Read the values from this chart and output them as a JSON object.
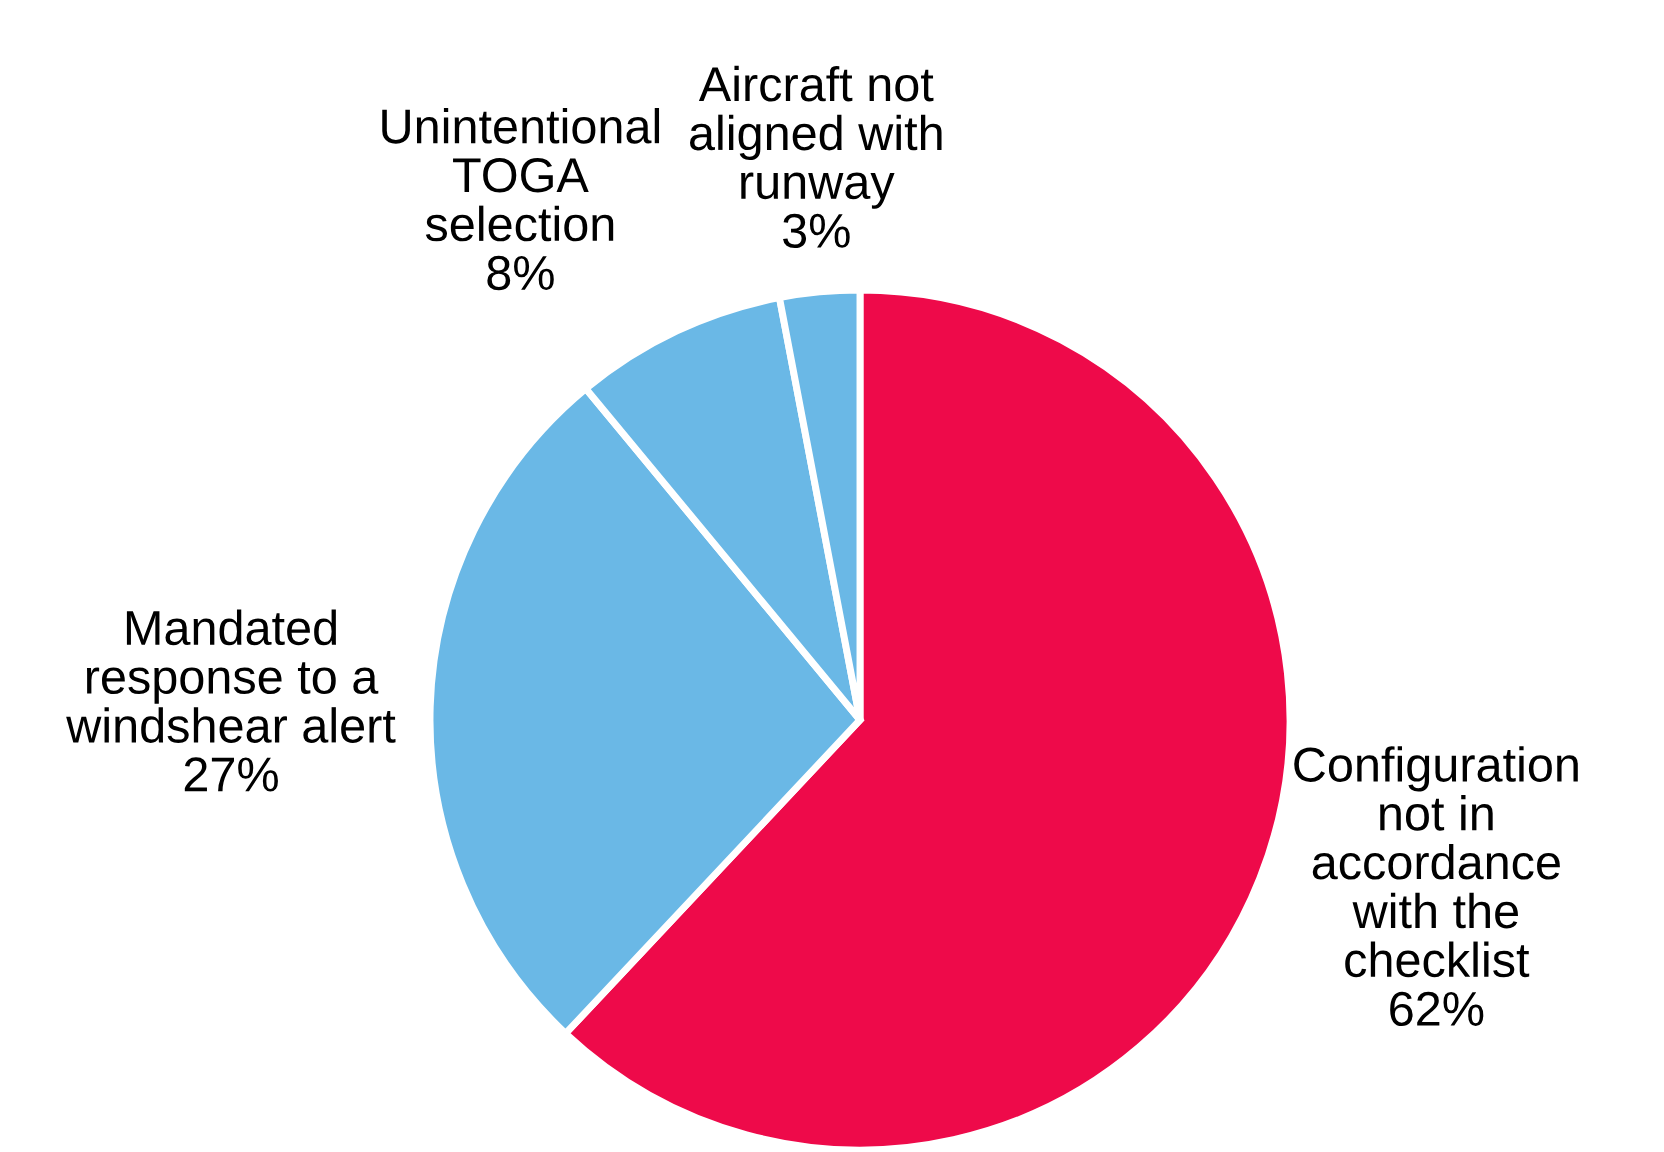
{
  "chart_data": {
    "type": "pie",
    "categories": [
      "Configuration\nnot in\naccordance\nwith the\nchecklist",
      "Mandated\nresponse to a\nwindshear alert",
      "Unintentional\nTOGA\nselection",
      "Aircraft not\naligned with\nrunway"
    ],
    "values": [
      62,
      27,
      8,
      3
    ],
    "colors": [
      "#ee0a4a",
      "#6ab8e6",
      "#6ab8e6",
      "#6ab8e6"
    ],
    "value_labels": [
      "62%",
      "27%",
      "8%",
      "3%"
    ]
  }
}
